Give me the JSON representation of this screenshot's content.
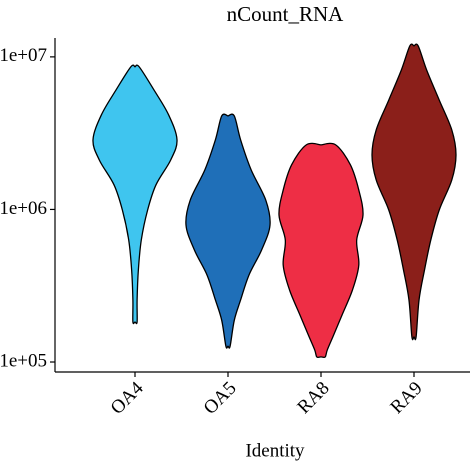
{
  "chart_data": {
    "type": "violin",
    "title": "nCount_RNA",
    "x_label": "Identity",
    "categories": [
      "OA4",
      "OA5",
      "RA8",
      "RA9"
    ],
    "log_y": true,
    "ylim": [
      86000,
      12900000
    ],
    "yticks": [
      {
        "value": 100000,
        "label": "1e+05"
      },
      {
        "value": 1000000,
        "label": "1e+06"
      },
      {
        "value": 10000000,
        "label": "1e+07"
      }
    ],
    "series": [
      {
        "name": "OA4",
        "color": "#3fc5ef",
        "values": [
          8600000,
          6080000,
          4170000,
          2860000,
          2110000,
          1450000,
          990000,
          631000,
          401000,
          255000,
          183000
        ],
        "widths": [
          0.1,
          0.45,
          0.8,
          1.0,
          0.85,
          0.5,
          0.3,
          0.15,
          0.08,
          0.05,
          0.05
        ]
      },
      {
        "name": "OA5",
        "color": "#1f6fb8",
        "values": [
          4100000,
          2860000,
          1820000,
          1150000,
          790000,
          542000,
          372000,
          255000,
          188000,
          127000
        ],
        "widths": [
          0.15,
          0.3,
          0.55,
          0.9,
          1.0,
          0.8,
          0.5,
          0.3,
          0.15,
          0.05
        ]
      },
      {
        "name": "RA8",
        "color": "#ee2e45",
        "values": [
          2650000,
          1960000,
          1340000,
          920000,
          631000,
          432000,
          297000,
          203000,
          150000,
          120000,
          108000
        ],
        "widths": [
          0.35,
          0.7,
          0.9,
          1.0,
          0.85,
          0.9,
          0.75,
          0.5,
          0.3,
          0.15,
          0.1
        ]
      },
      {
        "name": "RA9",
        "color": "#8b1f1a",
        "values": [
          11800000,
          8220000,
          5220000,
          3320000,
          2280000,
          1560000,
          990000,
          631000,
          401000,
          255000,
          146000
        ],
        "widths": [
          0.1,
          0.3,
          0.6,
          0.9,
          1.0,
          0.9,
          0.6,
          0.4,
          0.25,
          0.12,
          0.05
        ]
      }
    ]
  }
}
